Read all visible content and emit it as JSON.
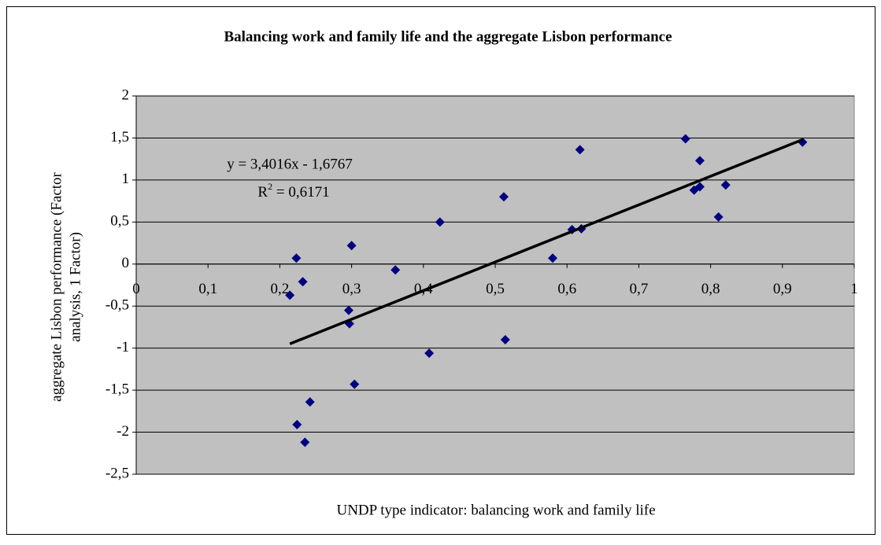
{
  "chart_data": {
    "type": "scatter",
    "title": "Balancing work and family life and the aggregate Lisbon performance",
    "x_label": "UNDP type indicator: balancing work and family life",
    "y_label": [
      "aggregate Lisbon performance (Factor",
      "analysis, 1 Factor)"
    ],
    "x": [
      0.214,
      0.223,
      0.232,
      0.224,
      0.235,
      0.242,
      0.3,
      0.296,
      0.297,
      0.304,
      0.361,
      0.408,
      0.423,
      0.512,
      0.514,
      0.58,
      0.607,
      0.62,
      0.618,
      0.765,
      0.785,
      0.777,
      0.785,
      0.821,
      0.811,
      0.928
    ],
    "series": [
      {
        "name": "aggregate Lisbon performance",
        "color": "#000080",
        "values": [
          -0.37,
          0.07,
          -0.21,
          -1.91,
          -2.12,
          -1.64,
          0.22,
          -0.55,
          -0.71,
          -1.43,
          -0.07,
          -1.06,
          0.5,
          0.8,
          -0.9,
          0.07,
          0.41,
          0.42,
          1.36,
          1.49,
          1.23,
          0.88,
          0.92,
          0.94,
          0.56,
          1.45
        ]
      }
    ],
    "trendline": {
      "slope": 3.4016,
      "intercept": -1.6767,
      "color": "#000000",
      "equation_label": "y = 3,4016x - 1,6767",
      "r2_label": [
        "R",
        "2",
        " = 0,6171"
      ]
    },
    "xlim": [
      0,
      1
    ],
    "xticks": [
      0,
      {
        "value": 0.1,
        "label": "0,1"
      },
      {
        "value": 0.2,
        "label": "0,2"
      },
      {
        "value": 0.3,
        "label": "0,3"
      },
      {
        "value": 0.4,
        "label": "0,4"
      },
      {
        "value": 0.5,
        "label": "0,5"
      },
      {
        "value": 0.6,
        "label": "0,6"
      },
      {
        "value": 0.7,
        "label": "0,7"
      },
      {
        "value": 0.8,
        "label": "0,8"
      },
      {
        "value": 0.9,
        "label": "0,9"
      },
      1
    ],
    "ylim": [
      -2.5,
      2
    ],
    "yticks": [
      {
        "value": -2.5,
        "label": "-2,5"
      },
      -2,
      {
        "value": -1.5,
        "label": "-1,5"
      },
      -1,
      {
        "value": -0.5,
        "label": "-0,5"
      },
      0,
      {
        "value": 0.5,
        "label": "0,5"
      },
      1,
      {
        "value": 1.5,
        "label": "1,5"
      },
      2
    ],
    "grid": true,
    "plot_background": "#c0c0c0"
  }
}
